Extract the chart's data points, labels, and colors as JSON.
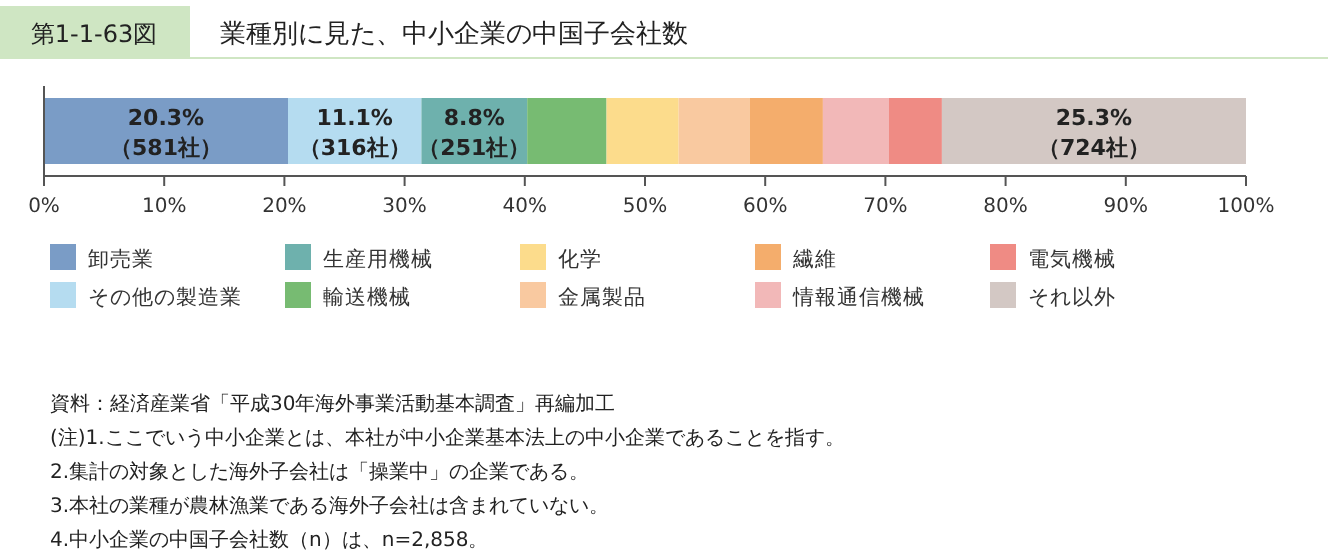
{
  "chart_data": {
    "type": "bar",
    "orientation": "horizontal",
    "stacked": true,
    "title": "業種別に見た、中小企業の中国子会社数",
    "categories": [
      null
    ],
    "series": [
      {
        "name": "卸売業",
        "color": "#7a9cc6",
        "values": [
          20.3
        ],
        "value_labels": [
          "20.3%\n（581社）"
        ]
      },
      {
        "name": "その他の製造業",
        "color": "#b5dcf0",
        "values": [
          11.1
        ],
        "value_labels": [
          "11.1%\n（316社）"
        ]
      },
      {
        "name": "生産用機械",
        "color": "#6eb1ad",
        "values": [
          8.8
        ],
        "value_labels": [
          "8.8%\n（251社）"
        ]
      },
      {
        "name": "輸送機械",
        "color": "#77bb72",
        "values": [
          6.6
        ]
      },
      {
        "name": "化学",
        "color": "#fcdc8c",
        "values": [
          6.0
        ]
      },
      {
        "name": "金属製品",
        "color": "#f9c9a0",
        "values": [
          5.9
        ]
      },
      {
        "name": "繊維",
        "color": "#f4ad6c",
        "values": [
          6.1
        ]
      },
      {
        "name": "情報通信機械",
        "color": "#f2b8b8",
        "values": [
          5.5
        ]
      },
      {
        "name": "電気機械",
        "color": "#ef8b84",
        "values": [
          4.4
        ]
      },
      {
        "name": "それ以外",
        "color": "#d3c8c4",
        "values": [
          25.3
        ],
        "value_labels": [
          "25.3%\n（724社）"
        ]
      }
    ],
    "xlim": [
      0,
      100
    ],
    "xticks": [
      {
        "value": 0,
        "label": "0%"
      },
      {
        "value": 10,
        "label": "10%"
      },
      {
        "value": 20,
        "label": "20%"
      },
      {
        "value": 30,
        "label": "30%"
      },
      {
        "value": 40,
        "label": "40%"
      },
      {
        "value": 50,
        "label": "50%"
      },
      {
        "value": 60,
        "label": "60%"
      },
      {
        "value": 70,
        "label": "70%"
      },
      {
        "value": 80,
        "label": "80%"
      },
      {
        "value": 90,
        "label": "90%"
      },
      {
        "value": 100,
        "label": "100%"
      }
    ],
    "grid": false,
    "legend": "bottom",
    "annotations": [
      "第1-1-63図",
      "資料：経済産業省「平成30年海外事業活動基本調査」再編加工",
      "(注)1.ここでいう中小企業とは、本社が中小企業基本法上の中小企業であることを指す。",
      "2.集計の対象とした海外子会社は「操業中」の企業である。",
      "3.本社の業種が農林漁業である海外子会社は含まれていない。",
      "4.中小企業の中国子会社数（n）は、n=2,858。"
    ]
  }
}
